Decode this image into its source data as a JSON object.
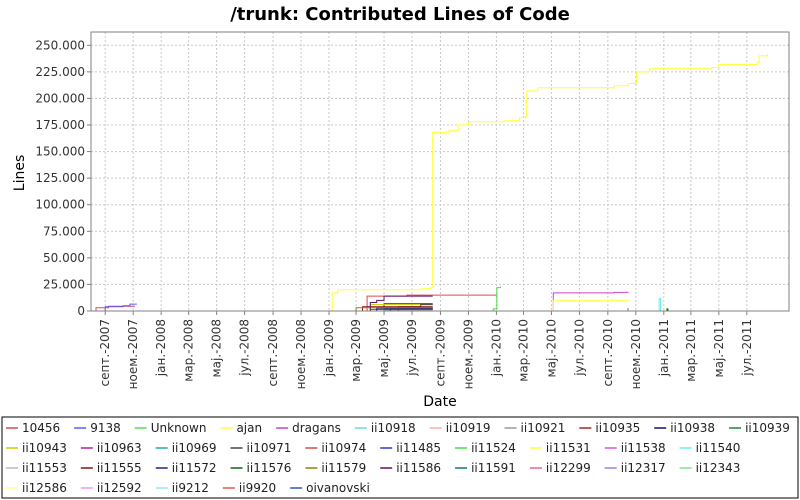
{
  "chart_data": {
    "type": "line",
    "title": "/trunk: Contributed Lines of Code",
    "xlabel": "Date",
    "ylabel": "Lines",
    "ylim": [
      0,
      262500
    ],
    "yticks": [
      0,
      25000,
      50000,
      75000,
      100000,
      125000,
      150000,
      175000,
      200000,
      225000,
      250000
    ],
    "ytick_labels": [
      "0",
      "25.000",
      "50.000",
      "75.000",
      "100.000",
      "125.000",
      "150.000",
      "175.000",
      "200.000",
      "225.000",
      "250.000"
    ],
    "xlim": [
      "2007-08-01",
      "2011-10-01"
    ],
    "xtick_labels": [
      "септ.-2007",
      "ноем.-2007",
      "јан.-2008",
      "мар.-2008",
      "мај.-2008",
      "јул.-2008",
      "септ.-2008",
      "ноем.-2008",
      "јан.-2009",
      "мар.-2009",
      "мај.-2009",
      "јул.-2009",
      "септ.-2009",
      "ноем.-2009",
      "јан.-2010",
      "мар.-2010",
      "мај.-2010",
      "јул.-2010",
      "септ.-2010",
      "ноем.-2010",
      "јан.-2011",
      "мар.-2011",
      "мај.-2011",
      "јул.-2011"
    ],
    "xtick_dates": [
      "2007-09-01",
      "2007-11-01",
      "2008-01-01",
      "2008-03-01",
      "2008-05-01",
      "2008-07-01",
      "2008-09-01",
      "2008-11-01",
      "2009-01-01",
      "2009-03-01",
      "2009-05-01",
      "2009-07-01",
      "2009-09-01",
      "2009-11-01",
      "2010-01-01",
      "2010-03-01",
      "2010-05-01",
      "2010-07-01",
      "2010-09-01",
      "2010-11-01",
      "2011-01-01",
      "2011-03-01",
      "2011-05-01",
      "2011-07-01"
    ],
    "grid": true,
    "legend_position": "bottom",
    "series": [
      {
        "name": "10456",
        "color": "#e04848",
        "points": [
          [
            "2007-08-10",
            0
          ],
          [
            "2007-08-12",
            3000
          ],
          [
            "2007-09-05",
            3000
          ],
          [
            "2007-09-08",
            4500
          ],
          [
            "2007-11-05",
            4500
          ]
        ]
      },
      {
        "name": "9138",
        "color": "#5a5aff",
        "points": [
          [
            "2007-08-20",
            0
          ],
          [
            "2007-09-01",
            4000
          ],
          [
            "2007-10-10",
            5000
          ],
          [
            "2007-10-25",
            6500
          ],
          [
            "2007-11-08",
            7000
          ]
        ]
      },
      {
        "name": "Unknown",
        "color": "#55dd55",
        "points": [
          [
            "2007-08-15",
            0
          ],
          [
            "2011-08-01",
            0
          ]
        ]
      },
      {
        "name": "ajan",
        "color": "#ffff33",
        "points": [
          [
            "2009-01-05",
            0
          ],
          [
            "2009-01-08",
            17000
          ],
          [
            "2009-01-20",
            20000
          ],
          [
            "2009-07-20",
            21000
          ],
          [
            "2009-08-10",
            22000
          ],
          [
            "2009-08-15",
            168000
          ],
          [
            "2009-09-20",
            170000
          ],
          [
            "2009-10-10",
            175000
          ],
          [
            "2009-11-01",
            178000
          ],
          [
            "2010-01-20",
            179000
          ],
          [
            "2010-02-20",
            182000
          ],
          [
            "2010-03-05",
            183000
          ],
          [
            "2010-03-08",
            207000
          ],
          [
            "2010-04-01",
            210000
          ],
          [
            "2010-09-15",
            212000
          ],
          [
            "2010-10-15",
            214000
          ],
          [
            "2010-11-01",
            215000
          ],
          [
            "2010-11-03",
            225000
          ],
          [
            "2010-12-01",
            228000
          ],
          [
            "2011-04-15",
            229000
          ],
          [
            "2011-05-01",
            232000
          ],
          [
            "2011-07-25",
            234000
          ],
          [
            "2011-07-28",
            240000
          ],
          [
            "2011-08-15",
            242000
          ]
        ]
      },
      {
        "name": "dragans",
        "color": "#cc44cc",
        "points": [
          [
            "2010-05-01",
            0
          ],
          [
            "2010-05-05",
            17000
          ],
          [
            "2010-09-15",
            17500
          ],
          [
            "2010-10-15",
            18000
          ]
        ]
      },
      {
        "name": "ii10918",
        "color": "#66dddd",
        "points": [
          [
            "2010-06-01",
            0
          ],
          [
            "2010-10-15",
            0
          ]
        ]
      },
      {
        "name": "ii10919",
        "color": "#ffaaaa",
        "points": [
          [
            "2010-01-01",
            0
          ],
          [
            "2010-10-15",
            500
          ]
        ]
      },
      {
        "name": "ii10921",
        "color": "#999999",
        "points": [
          [
            "2009-02-01",
            0
          ],
          [
            "2009-05-01",
            1000
          ],
          [
            "2009-08-15",
            1000
          ]
        ]
      },
      {
        "name": "ii10935",
        "color": "#aa2222",
        "points": [
          [
            "2009-02-15",
            0
          ],
          [
            "2009-05-01",
            7000
          ],
          [
            "2009-08-15",
            7000
          ]
        ]
      },
      {
        "name": "ii10938",
        "color": "#111177",
        "points": [
          [
            "2009-03-01",
            0
          ],
          [
            "2009-05-15",
            2000
          ],
          [
            "2009-08-15",
            2000
          ]
        ]
      },
      {
        "name": "ii10939",
        "color": "#228822",
        "points": [
          [
            "2009-02-01",
            0
          ],
          [
            "2009-04-01",
            1500
          ],
          [
            "2009-08-15",
            1500
          ]
        ]
      },
      {
        "name": "ii10943",
        "color": "#cccc00",
        "points": [
          [
            "2009-01-15",
            0
          ],
          [
            "2009-04-01",
            6000
          ],
          [
            "2009-08-15",
            6000
          ]
        ]
      },
      {
        "name": "ii10963",
        "color": "#aa22aa",
        "points": [
          [
            "2009-02-01",
            0
          ],
          [
            "2009-04-15",
            3500
          ],
          [
            "2009-08-15",
            3500
          ]
        ]
      },
      {
        "name": "ii10969",
        "color": "#22aaaa",
        "points": [
          [
            "2009-03-01",
            0
          ],
          [
            "2009-05-01",
            2500
          ],
          [
            "2009-08-15",
            2500
          ]
        ]
      },
      {
        "name": "ii10971",
        "color": "#444444",
        "points": [
          [
            "2009-02-01",
            0
          ],
          [
            "2009-06-01",
            4000
          ],
          [
            "2009-07-15",
            4000
          ],
          [
            "2009-07-20",
            6000
          ],
          [
            "2009-08-15",
            6000
          ]
        ]
      },
      {
        "name": "ii10974",
        "color": "#e04848",
        "points": [
          [
            "2009-03-20",
            0
          ],
          [
            "2009-03-25",
            14000
          ],
          [
            "2009-06-20",
            15000
          ],
          [
            "2010-01-01",
            15000
          ]
        ]
      },
      {
        "name": "ii11485",
        "color": "#3333cc",
        "points": [
          [
            "2009-02-01",
            0
          ],
          [
            "2009-05-15",
            2500
          ],
          [
            "2009-08-15",
            2500
          ]
        ]
      },
      {
        "name": "ii11524",
        "color": "#44dd44",
        "points": [
          [
            "2009-12-20",
            0
          ],
          [
            "2009-12-25",
            2000
          ],
          [
            "2010-01-02",
            22000
          ],
          [
            "2010-01-10",
            23000
          ]
        ]
      },
      {
        "name": "ii11531",
        "color": "#ffff44",
        "points": [
          [
            "2010-05-01",
            0
          ],
          [
            "2010-05-05",
            10000
          ],
          [
            "2010-10-15",
            11000
          ]
        ]
      },
      {
        "name": "ii11538",
        "color": "#dd55dd",
        "points": [
          [
            "2010-05-01",
            0
          ],
          [
            "2010-10-15",
            1500
          ]
        ]
      },
      {
        "name": "ii11540",
        "color": "#66eeee",
        "points": [
          [
            "2010-12-20",
            0
          ],
          [
            "2010-12-22",
            12000
          ],
          [
            "2010-12-25",
            0
          ],
          [
            "2011-03-01",
            0
          ]
        ]
      },
      {
        "name": "ii11553",
        "color": "#bbbbbb",
        "points": [
          [
            "2009-02-01",
            0
          ],
          [
            "2009-08-15",
            0
          ]
        ]
      },
      {
        "name": "ii11555",
        "color": "#881111",
        "points": [
          [
            "2009-02-01",
            0
          ],
          [
            "2009-03-15",
            4000
          ],
          [
            "2009-08-15",
            4000
          ]
        ]
      },
      {
        "name": "ii11572",
        "color": "#222288",
        "points": [
          [
            "2009-02-01",
            0
          ],
          [
            "2009-04-15",
            2000
          ],
          [
            "2009-08-15",
            2000
          ]
        ]
      },
      {
        "name": "ii11576",
        "color": "#116611",
        "points": [
          [
            "2010-01-01",
            0
          ],
          [
            "2011-01-05",
            0
          ],
          [
            "2011-01-08",
            2000
          ],
          [
            "2011-01-10",
            0
          ],
          [
            "2011-03-01",
            0
          ]
        ]
      },
      {
        "name": "ii11579",
        "color": "#888800",
        "points": [
          [
            "2009-02-01",
            0
          ],
          [
            "2009-03-01",
            3000
          ],
          [
            "2009-08-15",
            3000
          ]
        ]
      },
      {
        "name": "ii11586",
        "color": "#661166",
        "points": [
          [
            "2009-02-01",
            0
          ],
          [
            "2009-04-01",
            8000
          ],
          [
            "2009-04-15",
            10000
          ],
          [
            "2009-05-01",
            14000
          ],
          [
            "2009-08-15",
            14000
          ]
        ]
      },
      {
        "name": "ii11591",
        "color": "#117777",
        "points": [
          [
            "2010-05-01",
            0
          ],
          [
            "2010-10-15",
            2500
          ]
        ]
      },
      {
        "name": "ii12299",
        "color": "#ee6688",
        "points": [
          [
            "2010-01-01",
            0
          ],
          [
            "2010-10-15",
            700
          ]
        ]
      },
      {
        "name": "ii12317",
        "color": "#8888ee",
        "points": [
          [
            "2010-03-01",
            0
          ],
          [
            "2010-10-15",
            1000
          ]
        ]
      },
      {
        "name": "ii12343",
        "color": "#88dd88",
        "points": [
          [
            "2010-01-01",
            0
          ],
          [
            "2010-10-15",
            800
          ]
        ]
      },
      {
        "name": "ii12586",
        "color": "#ffff88",
        "points": [
          [
            "2010-05-01",
            0
          ],
          [
            "2010-10-15",
            0
          ]
        ]
      },
      {
        "name": "ii12592",
        "color": "#ee99ee",
        "points": [
          [
            "2010-05-01",
            0
          ],
          [
            "2010-10-15",
            0
          ]
        ]
      },
      {
        "name": "ii9212",
        "color": "#88eeee",
        "points": [
          [
            "2007-08-15",
            0
          ],
          [
            "2009-08-15",
            0
          ]
        ]
      },
      {
        "name": "ii9920",
        "color": "#ee5555",
        "points": [
          [
            "2009-02-01",
            0
          ],
          [
            "2010-01-01",
            0
          ]
        ]
      },
      {
        "name": "oivanovski",
        "color": "#3355cc",
        "points": [
          [
            "2010-01-01",
            0
          ],
          [
            "2010-10-15",
            0
          ]
        ]
      }
    ]
  }
}
